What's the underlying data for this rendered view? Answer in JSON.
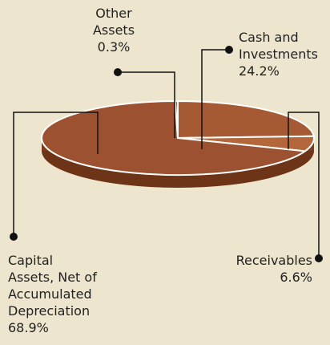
{
  "chart_data": {
    "type": "pie",
    "categories": [
      "Cash and Investments",
      "Receivables",
      "Capital Assets, Net of Accumulated Depreciation",
      "Other Assets"
    ],
    "values": [
      24.2,
      6.6,
      68.9,
      0.3
    ],
    "value_labels": [
      "24.2%",
      "6.6%",
      "68.9%",
      "0.3%"
    ],
    "colors": [
      "#a65a33",
      "#b4673a",
      "#9c5230",
      "#a65a33"
    ]
  }
}
